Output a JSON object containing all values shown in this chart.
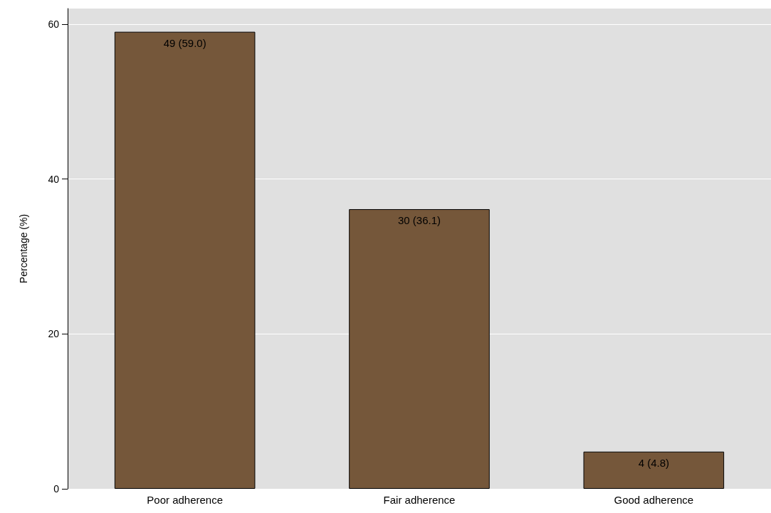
{
  "chart_data": {
    "type": "bar",
    "ylabel": "Percentage (%)",
    "categories": [
      "Poor adherence",
      "Fair adherence",
      "Good adherence"
    ],
    "values": [
      59.0,
      36.1,
      4.8
    ],
    "value_labels": [
      "49 (59.0)",
      "30 (36.1)",
      "4 (4.8)"
    ],
    "color": "#75573a",
    "ylim": [
      0,
      62
    ],
    "yticks": [
      0,
      20,
      40,
      60
    ],
    "grid": "y"
  }
}
